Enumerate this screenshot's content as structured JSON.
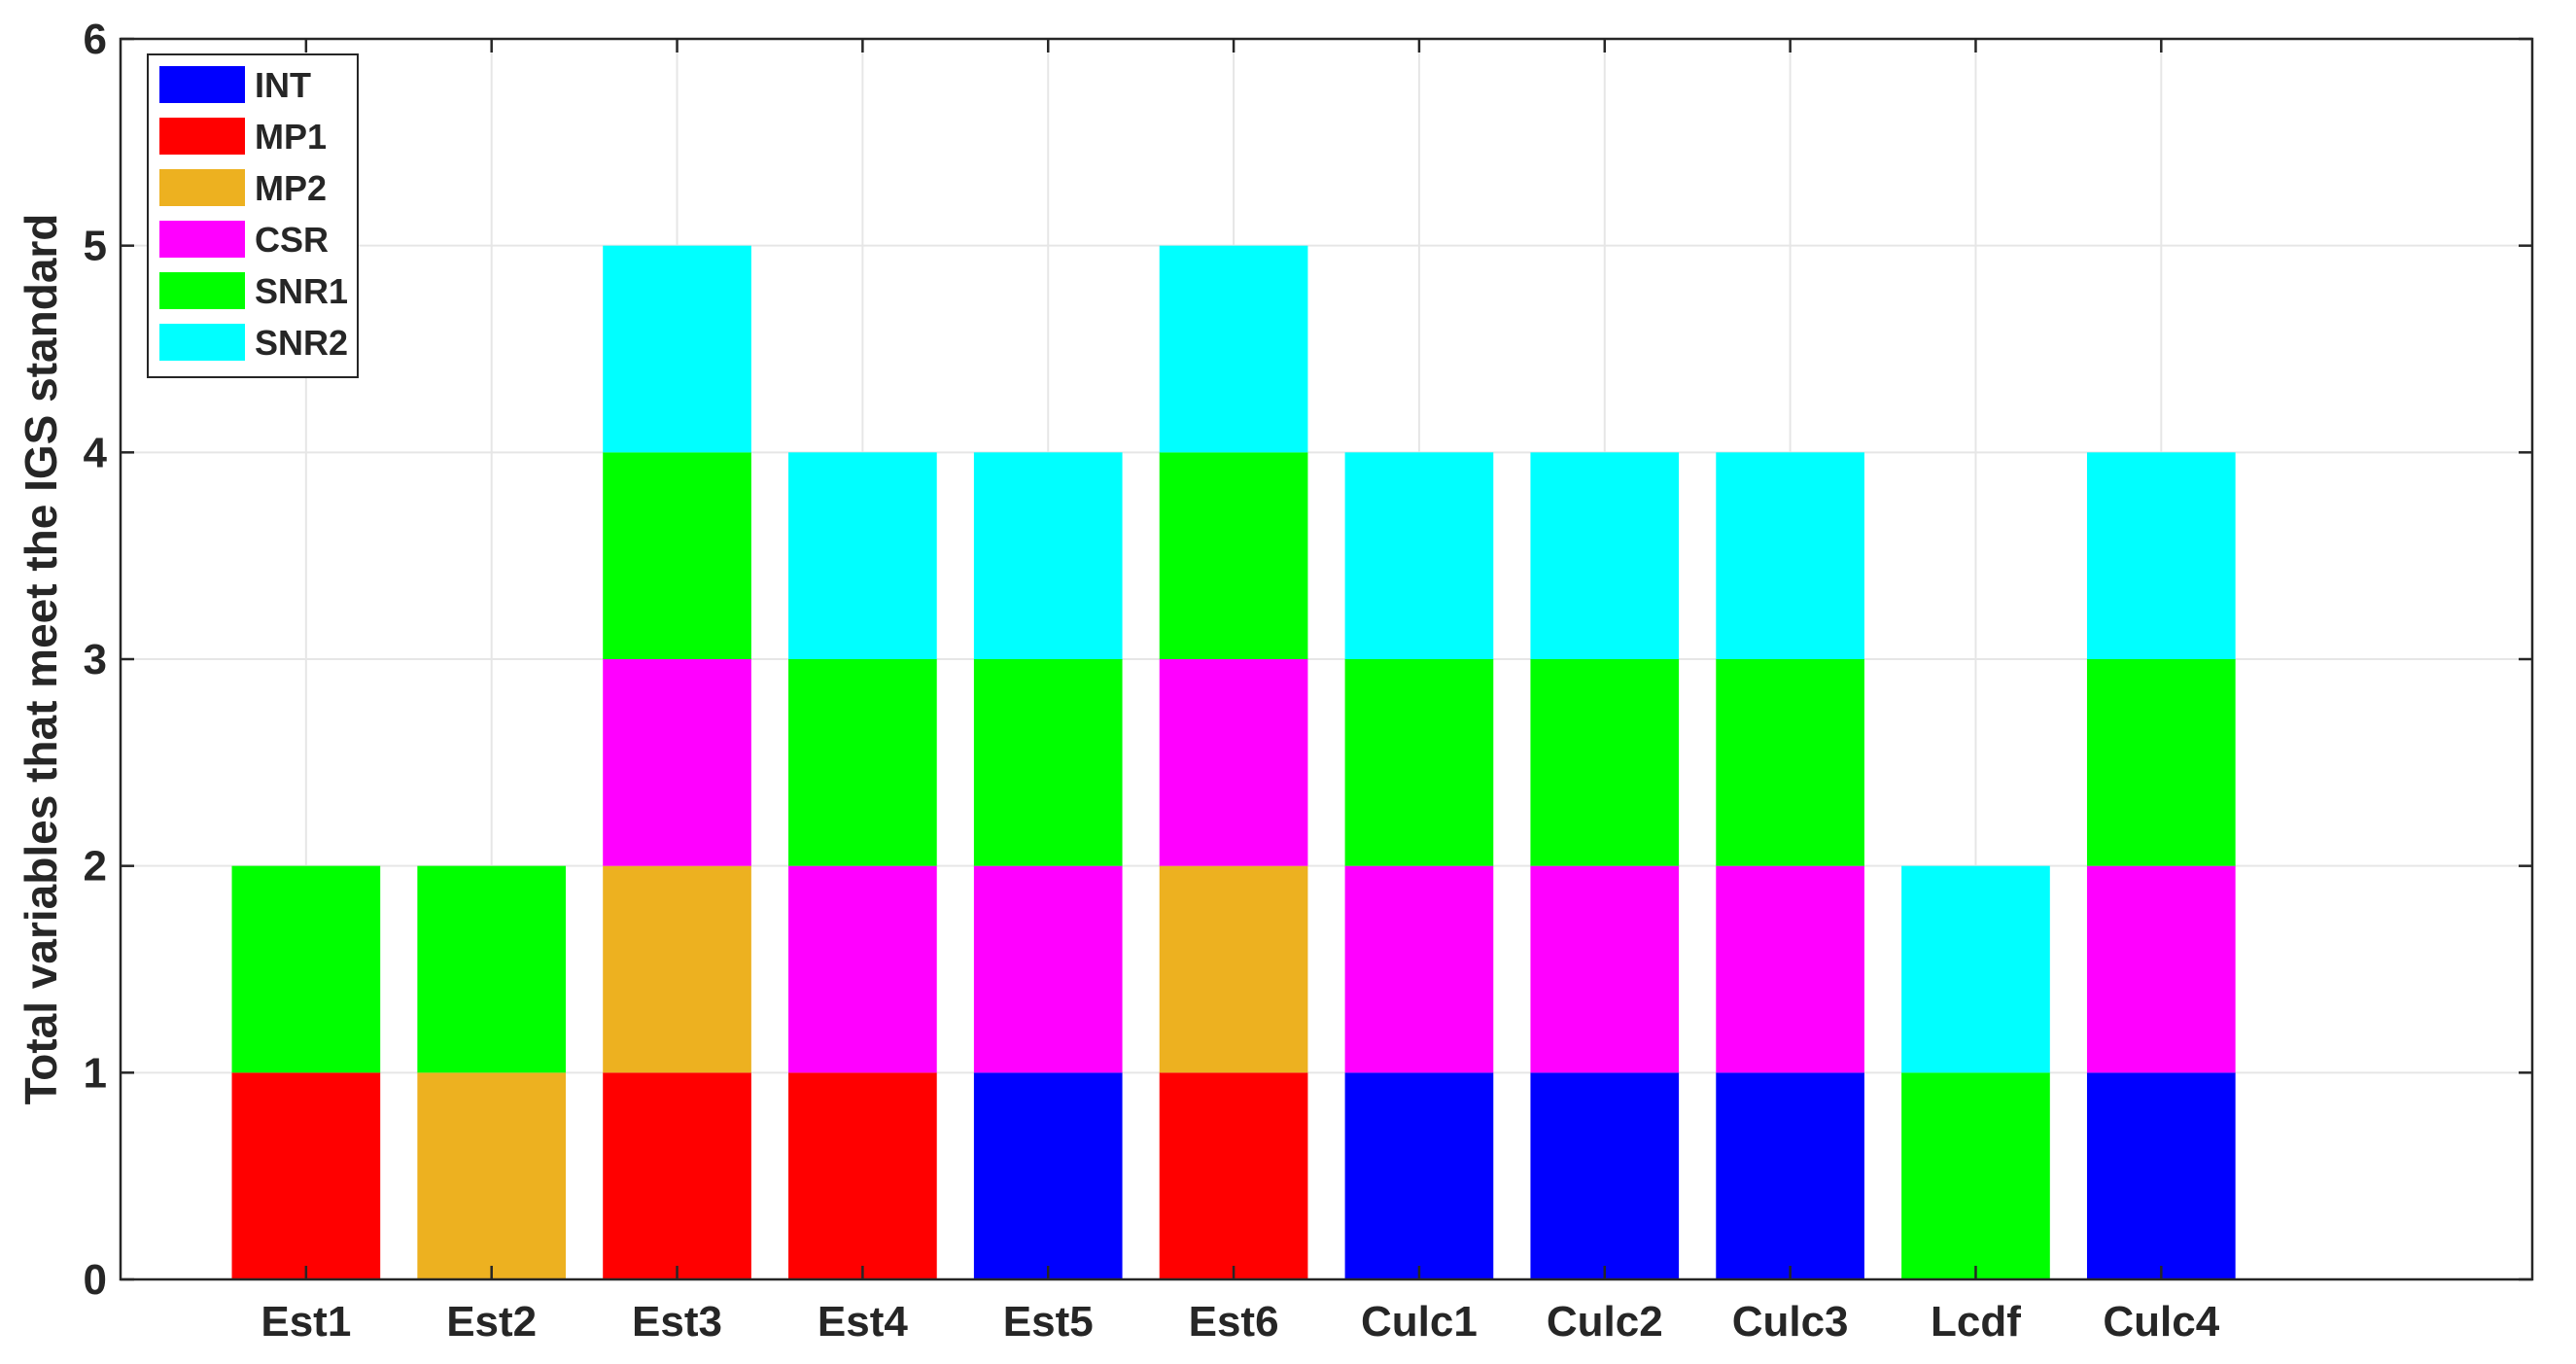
{
  "chart_data": {
    "type": "bar",
    "stacked": true,
    "ylabel": "Total variables that meet the IGS standard",
    "xlabel": "",
    "ylim": [
      0,
      6
    ],
    "yticks": [
      0,
      1,
      2,
      3,
      4,
      5,
      6
    ],
    "grid": true,
    "legend_position": "top-left",
    "categories": [
      "Est1",
      "Est2",
      "Est3",
      "Est4",
      "Est5",
      "Est6",
      "Culc1",
      "Culc2",
      "Culc3",
      "Lcdf",
      "Culc4"
    ],
    "series": [
      {
        "name": "INT",
        "color": "#0000ff",
        "values": [
          0,
          0,
          0,
          0,
          1,
          0,
          1,
          1,
          1,
          0,
          1
        ]
      },
      {
        "name": "MP1",
        "color": "#ff0000",
        "values": [
          1,
          0,
          1,
          1,
          0,
          1,
          0,
          0,
          0,
          0,
          0
        ]
      },
      {
        "name": "MP2",
        "color": "#edb120",
        "values": [
          0,
          1,
          1,
          0,
          0,
          1,
          0,
          0,
          0,
          0,
          0
        ]
      },
      {
        "name": "CSR",
        "color": "#ff00ff",
        "values": [
          0,
          0,
          1,
          1,
          1,
          1,
          1,
          1,
          1,
          0,
          1
        ]
      },
      {
        "name": "SNR1",
        "color": "#00ff00",
        "values": [
          1,
          1,
          1,
          1,
          1,
          1,
          1,
          1,
          1,
          1,
          1
        ]
      },
      {
        "name": "SNR2",
        "color": "#00ffff",
        "values": [
          0,
          0,
          1,
          1,
          1,
          1,
          1,
          1,
          1,
          1,
          1
        ]
      }
    ]
  }
}
